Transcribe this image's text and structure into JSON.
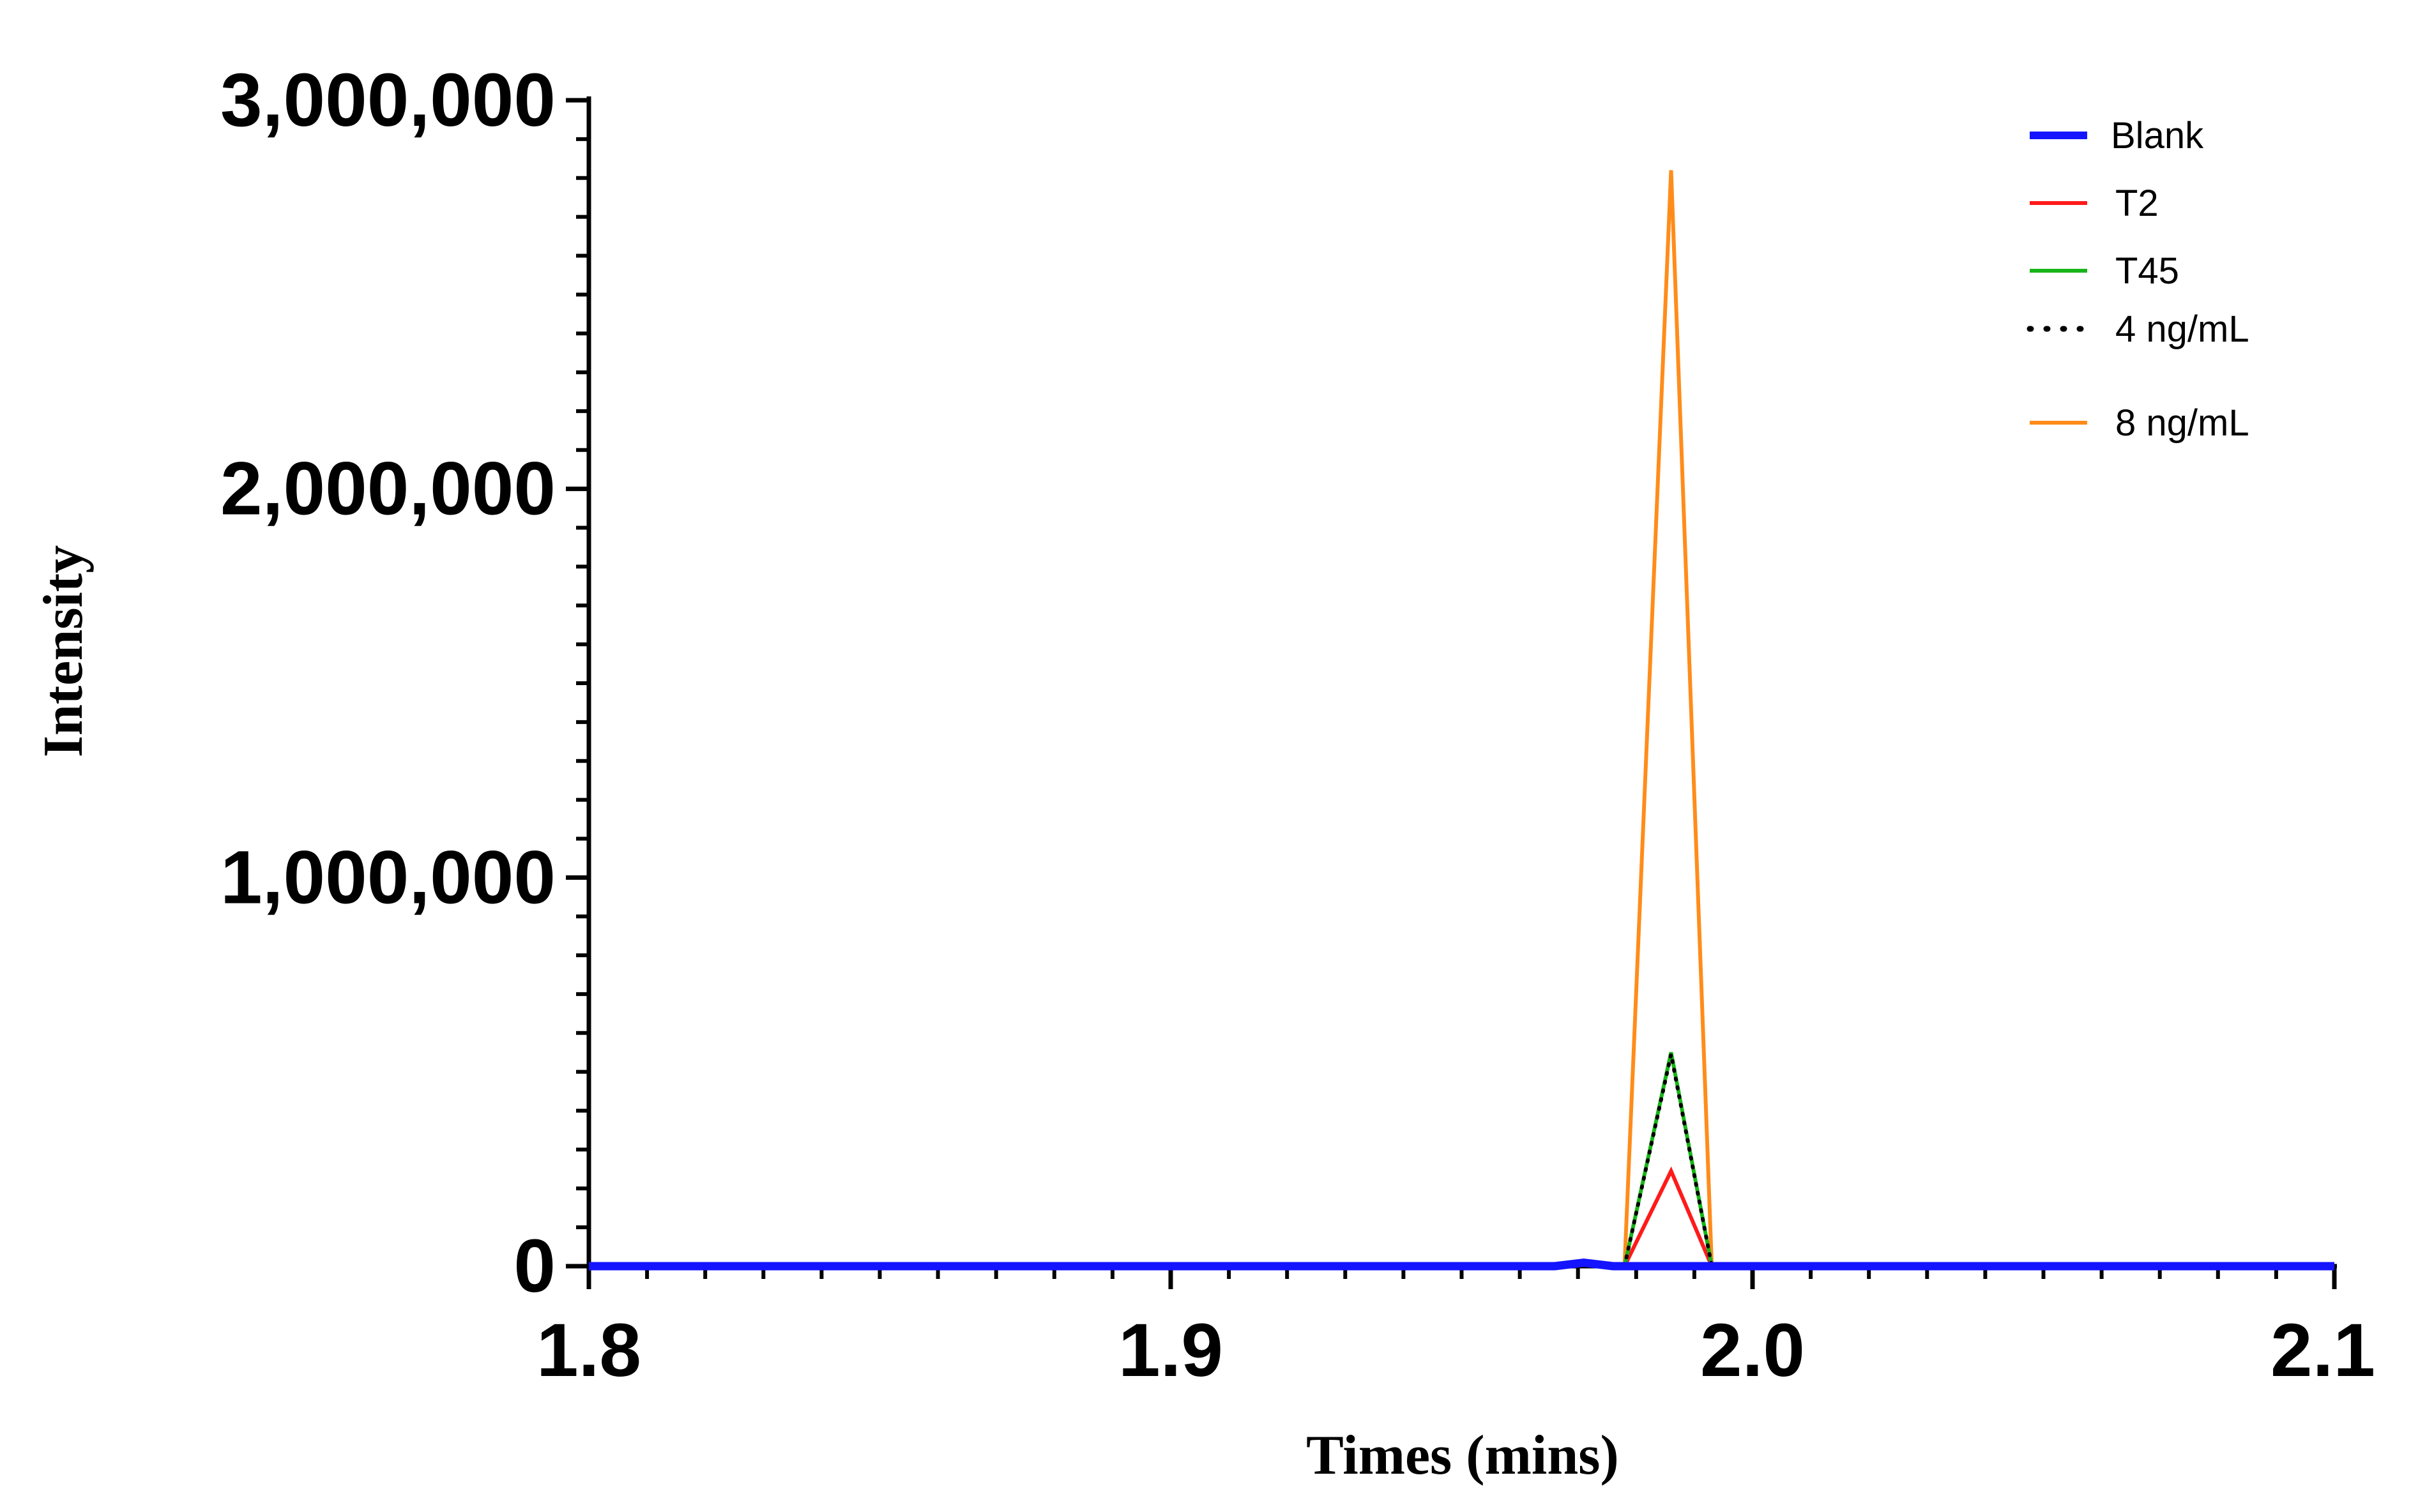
{
  "chart_data": {
    "type": "line",
    "title": "",
    "xlabel": "Times (mins)",
    "ylabel": "Intensity",
    "xlim": [
      1.8,
      2.1
    ],
    "ylim": [
      0,
      3000000
    ],
    "x_ticks": [
      1.8,
      1.9,
      2.0,
      2.1
    ],
    "x_tick_labels": [
      "1.8",
      "1.9",
      "2.0",
      "2.1"
    ],
    "y_ticks": [
      0,
      1000000,
      2000000,
      3000000
    ],
    "y_tick_labels": [
      "0",
      "1,000,000",
      "2,000,000",
      "3,000,000"
    ],
    "grid": false,
    "legend_position": "top-right",
    "series": [
      {
        "name": "Blank",
        "color": "#1414ff",
        "style": "solid-thick",
        "x": [
          1.8,
          1.966,
          1.971,
          1.976,
          2.1
        ],
        "y": [
          0,
          0,
          9000,
          0,
          0
        ]
      },
      {
        "name": "T2",
        "color": "#ff1a1a",
        "style": "solid",
        "x": [
          1.978,
          1.986,
          1.993
        ],
        "y": [
          0,
          245000,
          0
        ]
      },
      {
        "name": "T45",
        "color": "#19b419",
        "style": "solid",
        "x": [
          1.978,
          1.986,
          1.993
        ],
        "y": [
          0,
          550000,
          0
        ]
      },
      {
        "name": "4 ng/mL",
        "color": "#000000",
        "style": "dotted",
        "x": [
          1.978,
          1.986,
          1.993
        ],
        "y": [
          0,
          545000,
          0
        ]
      },
      {
        "name": "8 ng/mL",
        "color": "#ff8c1a",
        "style": "solid",
        "x": [
          1.978,
          1.986,
          1.993
        ],
        "y": [
          0,
          2820000,
          0
        ]
      }
    ]
  }
}
